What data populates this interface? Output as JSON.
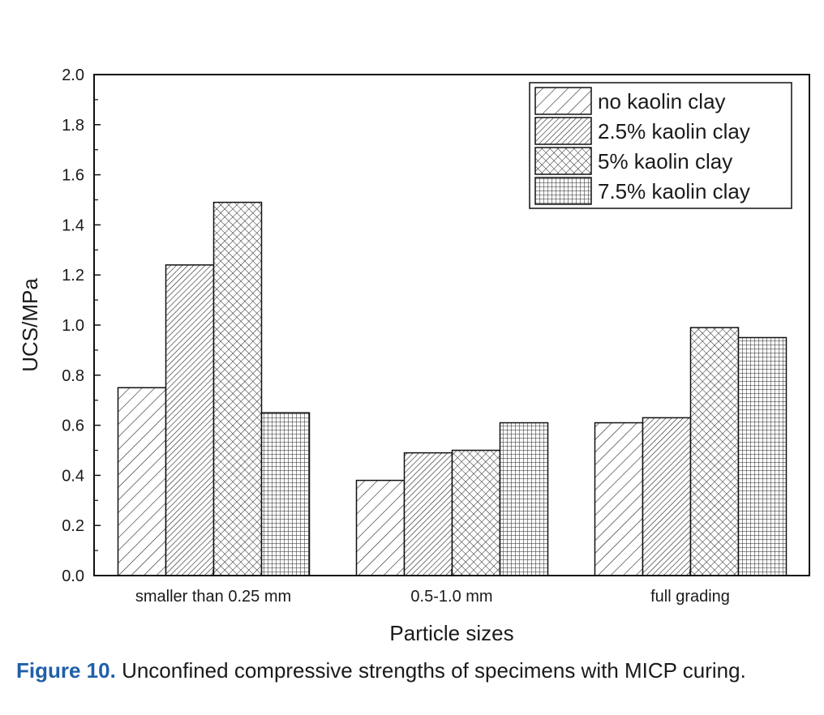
{
  "chart_data": {
    "type": "bar",
    "categories": [
      "smaller than 0.25 mm",
      "0.5-1.0 mm",
      "full grading"
    ],
    "series": [
      {
        "name": "no kaolin clay",
        "values": [
          0.75,
          0.38,
          0.61
        ],
        "pattern": "diagonal-wide"
      },
      {
        "name": "2.5% kaolin clay",
        "values": [
          1.24,
          0.49,
          0.63
        ],
        "pattern": "diagonal-dense"
      },
      {
        "name": "5% kaolin clay",
        "values": [
          1.49,
          0.5,
          0.99
        ],
        "pattern": "crosshatch-diagonal"
      },
      {
        "name": "7.5% kaolin clay",
        "values": [
          0.65,
          0.61,
          0.95
        ],
        "pattern": "grid"
      }
    ],
    "xlabel": "Particle sizes",
    "ylabel": "UCS/MPa",
    "ylim": [
      0,
      2.0
    ],
    "yticks": [
      "0.0",
      "0.2",
      "0.4",
      "0.6",
      "0.8",
      "1.0",
      "1.2",
      "1.4",
      "1.6",
      "1.8",
      "2.0"
    ],
    "legend_position": "top-right",
    "grid": false
  },
  "caption": {
    "label": "Figure 10.",
    "text": "Unconfined compressive strengths of specimens with MICP curing."
  }
}
